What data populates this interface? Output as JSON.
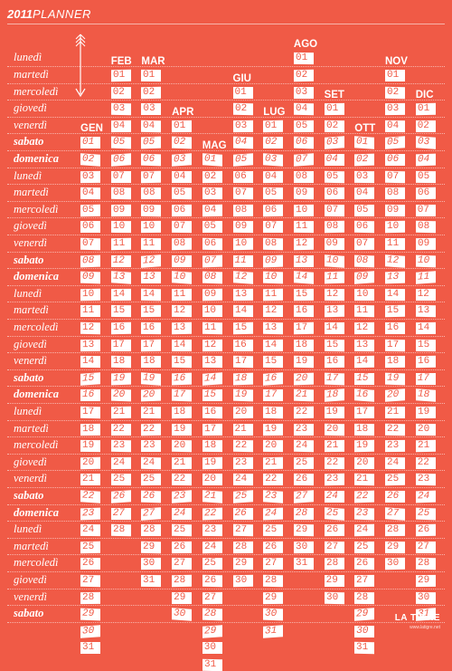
{
  "header": {
    "year": "2011",
    "title": "PLANNER"
  },
  "weekdays": [
    "lunedì",
    "martedì",
    "mercoledì",
    "giovedì",
    "venerdì",
    "sabato",
    "domenica"
  ],
  "months": [
    {
      "name": "GEN",
      "days": 31,
      "start": 5
    },
    {
      "name": "FEB",
      "days": 28,
      "start": 1
    },
    {
      "name": "MAR",
      "days": 31,
      "start": 1
    },
    {
      "name": "APR",
      "days": 30,
      "start": 4
    },
    {
      "name": "MAG",
      "days": 31,
      "start": 6
    },
    {
      "name": "GIU",
      "days": 30,
      "start": 2
    },
    {
      "name": "LUG",
      "days": 31,
      "start": 4
    },
    {
      "name": "AGO",
      "days": 31,
      "start": 0
    },
    {
      "name": "SET",
      "days": 30,
      "start": 3
    },
    {
      "name": "OTT",
      "days": 31,
      "start": 5
    },
    {
      "name": "NOV",
      "days": 30,
      "start": 1
    },
    {
      "name": "DIC",
      "days": 31,
      "start": 3
    }
  ],
  "footer": {
    "brand": "LA TIGRE",
    "subtext": "www.latigre.net"
  },
  "colors": {
    "background": "#f05a46",
    "text": "#ffffff",
    "cell": "#ffffff",
    "cell_text": "#f05a46"
  },
  "icons": {
    "arrow": "arrow-down-icon"
  }
}
